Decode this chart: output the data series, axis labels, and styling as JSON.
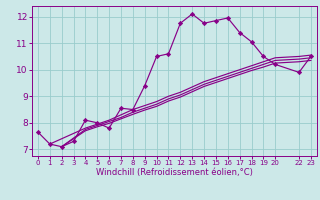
{
  "xlabel": "Windchill (Refroidissement éolien,°C)",
  "bg_color": "#cce8e8",
  "grid_color": "#99cccc",
  "line_color": "#880088",
  "xlim": [
    -0.5,
    23.5
  ],
  "ylim": [
    6.75,
    12.4
  ],
  "xticks": [
    0,
    1,
    2,
    3,
    4,
    5,
    6,
    7,
    8,
    9,
    10,
    11,
    12,
    13,
    14,
    15,
    16,
    17,
    18,
    19,
    20,
    22,
    23
  ],
  "yticks": [
    7,
    8,
    9,
    10,
    11,
    12
  ],
  "main_line": {
    "x": [
      0,
      1,
      2,
      3,
      4,
      5,
      6,
      7,
      8,
      9,
      10,
      11,
      12,
      13,
      14,
      15,
      16,
      17,
      18,
      19,
      20,
      22,
      23
    ],
    "y": [
      7.65,
      7.2,
      7.1,
      7.3,
      8.1,
      8.0,
      7.8,
      8.55,
      8.5,
      9.4,
      10.5,
      10.6,
      11.75,
      12.1,
      11.75,
      11.85,
      11.95,
      11.4,
      11.05,
      10.5,
      10.2,
      9.9,
      10.5
    ]
  },
  "straight_lines": [
    {
      "x": [
        1,
        4,
        5,
        6,
        7,
        8,
        9,
        10,
        11,
        12,
        13,
        14,
        15,
        16,
        17,
        18,
        19,
        20,
        22,
        23
      ],
      "y": [
        7.2,
        7.8,
        7.95,
        8.1,
        8.3,
        8.5,
        8.65,
        8.8,
        9.0,
        9.15,
        9.35,
        9.55,
        9.7,
        9.85,
        10.0,
        10.15,
        10.3,
        10.45,
        10.5,
        10.55
      ]
    },
    {
      "x": [
        2,
        4,
        5,
        6,
        7,
        8,
        9,
        10,
        11,
        12,
        13,
        14,
        15,
        16,
        17,
        18,
        19,
        20,
        22,
        23
      ],
      "y": [
        7.1,
        7.75,
        7.9,
        8.05,
        8.2,
        8.4,
        8.55,
        8.7,
        8.9,
        9.05,
        9.25,
        9.45,
        9.6,
        9.75,
        9.9,
        10.05,
        10.2,
        10.35,
        10.4,
        10.45
      ]
    },
    {
      "x": [
        2,
        4,
        5,
        6,
        7,
        8,
        9,
        10,
        11,
        12,
        13,
        14,
        15,
        16,
        17,
        18,
        19,
        20,
        22,
        23
      ],
      "y": [
        7.1,
        7.7,
        7.85,
        7.98,
        8.15,
        8.32,
        8.48,
        8.62,
        8.82,
        8.97,
        9.17,
        9.37,
        9.52,
        9.67,
        9.82,
        9.97,
        10.1,
        10.25,
        10.3,
        10.35
      ]
    }
  ]
}
